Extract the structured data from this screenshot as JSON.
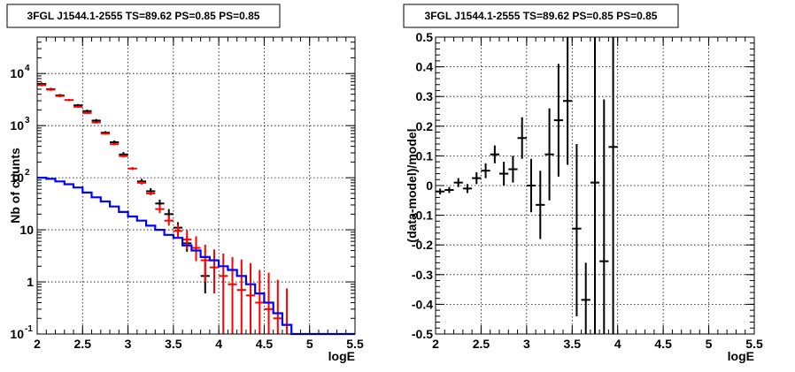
{
  "chart_data": [
    {
      "type": "line",
      "title": "3FGL J1544.1-2555 TS=89.62 PS=0.85 PS=0.85",
      "xlabel": "logE",
      "ylabel": "Nb of counts",
      "xlim": [
        2,
        5.5
      ],
      "ylim": [
        0.1,
        50000
      ],
      "yscale": "log",
      "grid": true,
      "x_ticks": [
        "2",
        "2.5",
        "3",
        "3.5",
        "4",
        "4.5",
        "5",
        "5.5"
      ],
      "y_ticks": [
        {
          "value": 0.1,
          "mant": "10",
          "exp": "-1"
        },
        {
          "value": 1,
          "mant": "1",
          "exp": ""
        },
        {
          "value": 10,
          "mant": "10",
          "exp": ""
        },
        {
          "value": 100,
          "mant": "10",
          "exp": "2"
        },
        {
          "value": 1000,
          "mant": "10",
          "exp": "3"
        },
        {
          "value": 10000,
          "mant": "10",
          "exp": "4"
        }
      ],
      "colors": {
        "data": "#000000",
        "model": "#ff0000",
        "background": "#0000ff"
      },
      "series": [
        {
          "kind": "errorbars",
          "color": "#000000",
          "points": [
            {
              "x": 2.05,
              "y": 6300,
              "lo": 5900,
              "hi": 6700
            },
            {
              "x": 2.15,
              "y": 5000,
              "lo": 4700,
              "hi": 5300
            },
            {
              "x": 2.25,
              "y": 3800,
              "lo": 3550,
              "hi": 4050
            },
            {
              "x": 2.45,
              "y": 2450,
              "lo": 2300,
              "hi": 2600
            },
            {
              "x": 2.55,
              "y": 1900,
              "lo": 1780,
              "hi": 2020
            },
            {
              "x": 2.65,
              "y": 1250,
              "lo": 1160,
              "hi": 1340
            },
            {
              "x": 2.75,
              "y": 730,
              "lo": 680,
              "hi": 780
            },
            {
              "x": 2.85,
              "y": 480,
              "lo": 440,
              "hi": 520
            },
            {
              "x": 2.95,
              "y": 280,
              "lo": 250,
              "hi": 310
            },
            {
              "x": 3.15,
              "y": 85,
              "lo": 76,
              "hi": 95
            },
            {
              "x": 3.25,
              "y": 55,
              "lo": 48,
              "hi": 63
            },
            {
              "x": 3.35,
              "y": 32,
              "lo": 27,
              "hi": 38
            },
            {
              "x": 3.45,
              "y": 20,
              "lo": 16,
              "hi": 25
            },
            {
              "x": 3.55,
              "y": 11,
              "lo": 8.5,
              "hi": 14
            },
            {
              "x": 3.65,
              "y": 5.5,
              "lo": 3.8,
              "hi": 7.5
            },
            {
              "x": 3.75,
              "y": 4,
              "lo": 2.8,
              "hi": 5.8
            },
            {
              "x": 3.85,
              "y": 1.3,
              "lo": 0.6,
              "hi": 2.4
            }
          ]
        },
        {
          "kind": "errorbars",
          "color": "#ff0000",
          "points": [
            {
              "x": 2.05,
              "y": 6000,
              "lo": 5700,
              "hi": 6300
            },
            {
              "x": 2.15,
              "y": 4900,
              "lo": 4650,
              "hi": 5150
            },
            {
              "x": 2.25,
              "y": 3700,
              "lo": 3500,
              "hi": 3900
            },
            {
              "x": 2.35,
              "y": 3100,
              "lo": 2950,
              "hi": 3250
            },
            {
              "x": 2.45,
              "y": 2300,
              "lo": 2200,
              "hi": 2400
            },
            {
              "x": 2.55,
              "y": 1750,
              "lo": 1680,
              "hi": 1820
            },
            {
              "x": 2.65,
              "y": 1150,
              "lo": 1100,
              "hi": 1200
            },
            {
              "x": 2.75,
              "y": 700,
              "lo": 670,
              "hi": 730
            },
            {
              "x": 2.85,
              "y": 440,
              "lo": 420,
              "hi": 460
            },
            {
              "x": 2.95,
              "y": 260,
              "lo": 245,
              "hi": 275
            },
            {
              "x": 3.05,
              "y": 150,
              "lo": 140,
              "hi": 160
            },
            {
              "x": 3.15,
              "y": 80,
              "lo": 74,
              "hi": 86
            },
            {
              "x": 3.25,
              "y": 50,
              "lo": 46,
              "hi": 54
            },
            {
              "x": 3.35,
              "y": 25,
              "lo": 21,
              "hi": 30
            },
            {
              "x": 3.45,
              "y": 15,
              "lo": 12,
              "hi": 19
            },
            {
              "x": 3.55,
              "y": 9.5,
              "lo": 7,
              "hi": 13
            },
            {
              "x": 3.65,
              "y": 6.5,
              "lo": 4.2,
              "hi": 9.8
            },
            {
              "x": 3.75,
              "y": 4.5,
              "lo": 2.5,
              "hi": 7.5
            },
            {
              "x": 3.85,
              "y": 2.6,
              "lo": 1.0,
              "hi": 5.2
            },
            {
              "x": 3.95,
              "y": 1.9,
              "lo": 0.6,
              "hi": 4.2
            },
            {
              "x": 4.05,
              "y": 1.3,
              "lo": 0.1,
              "hi": 3.5
            },
            {
              "x": 4.15,
              "y": 0.9,
              "lo": 0.1,
              "hi": 3.0
            },
            {
              "x": 4.25,
              "y": 0.7,
              "lo": 0.1,
              "hi": 2.7
            },
            {
              "x": 4.35,
              "y": 0.55,
              "lo": 0.1,
              "hi": 2.3
            },
            {
              "x": 4.45,
              "y": 0.4,
              "lo": 0.1,
              "hi": 1.7
            },
            {
              "x": 4.55,
              "y": 0.3,
              "lo": 0.1,
              "hi": 1.5
            },
            {
              "x": 4.65,
              "y": 0.2,
              "lo": 0.1,
              "hi": 1.1
            },
            {
              "x": 4.75,
              "y": 0.15,
              "lo": 0.1,
              "hi": 0.75
            }
          ]
        },
        {
          "kind": "step",
          "color": "#0000ff",
          "edges": [
            2.0,
            2.1,
            2.2,
            2.3,
            2.4,
            2.5,
            2.6,
            2.7,
            2.8,
            2.9,
            3.0,
            3.1,
            3.2,
            3.3,
            3.4,
            3.5,
            3.6,
            3.7,
            3.8,
            3.9,
            4.0,
            4.1,
            4.2,
            4.3,
            4.4,
            4.5,
            4.6,
            4.7,
            4.8,
            4.9,
            5.5
          ],
          "values": [
            100,
            95,
            85,
            75,
            65,
            52,
            42,
            35,
            28,
            22,
            18,
            15,
            12,
            10,
            8,
            7,
            5,
            4,
            3,
            2.6,
            2,
            1.7,
            1.3,
            0.9,
            0.6,
            0.4,
            0.25,
            0.15,
            0.1,
            0.1
          ]
        }
      ]
    },
    {
      "type": "scatter",
      "title": "3FGL J1544.1-2555 TS=89.62 PS=0.85 PS=0.85",
      "xlabel": "logE",
      "ylabel": "(data-model)/model",
      "xlim": [
        2,
        5.5
      ],
      "ylim": [
        -0.5,
        0.5
      ],
      "grid": true,
      "x_ticks": [
        "2",
        "2.5",
        "3",
        "3.5",
        "4",
        "4.5",
        "5",
        "5.5"
      ],
      "y_ticks": [
        "-0.5",
        "-0.4",
        "-0.3",
        "-0.2",
        "-0.1",
        "0",
        "0.1",
        "0.2",
        "0.3",
        "0.4",
        "0.5"
      ],
      "series": [
        {
          "kind": "errorbars",
          "color": "#000000",
          "points": [
            {
              "x": 2.05,
              "y": -0.02,
              "lo": -0.03,
              "hi": -0.01
            },
            {
              "x": 2.15,
              "y": -0.015,
              "lo": -0.025,
              "hi": -0.005
            },
            {
              "x": 2.25,
              "y": 0.01,
              "lo": -0.005,
              "hi": 0.025
            },
            {
              "x": 2.35,
              "y": -0.01,
              "lo": -0.025,
              "hi": 0.005
            },
            {
              "x": 2.45,
              "y": 0.025,
              "lo": 0.005,
              "hi": 0.045
            },
            {
              "x": 2.55,
              "y": 0.05,
              "lo": 0.025,
              "hi": 0.075
            },
            {
              "x": 2.65,
              "y": 0.105,
              "lo": 0.075,
              "hi": 0.135
            },
            {
              "x": 2.75,
              "y": 0.04,
              "lo": 0.0,
              "hi": 0.08
            },
            {
              "x": 2.85,
              "y": 0.055,
              "lo": 0.01,
              "hi": 0.1
            },
            {
              "x": 2.95,
              "y": 0.16,
              "lo": 0.09,
              "hi": 0.23
            },
            {
              "x": 3.05,
              "y": 0.0,
              "lo": -0.09,
              "hi": 0.09
            },
            {
              "x": 3.15,
              "y": -0.065,
              "lo": -0.18,
              "hi": 0.05
            },
            {
              "x": 3.25,
              "y": 0.105,
              "lo": -0.05,
              "hi": 0.26
            },
            {
              "x": 3.35,
              "y": 0.22,
              "lo": 0.03,
              "hi": 0.41
            },
            {
              "x": 3.45,
              "y": 0.285,
              "lo": 0.07,
              "hi": 0.5
            },
            {
              "x": 3.55,
              "y": -0.145,
              "lo": -0.44,
              "hi": 0.14
            },
            {
              "x": 3.65,
              "y": -0.385,
              "lo": -0.5,
              "hi": -0.26
            },
            {
              "x": 3.75,
              "y": 0.01,
              "lo": -0.5,
              "hi": 0.5
            },
            {
              "x": 3.85,
              "y": -0.255,
              "lo": -0.5,
              "hi": 0.29
            },
            {
              "x": 3.95,
              "y": 0.13,
              "lo": -0.5,
              "hi": 0.5
            }
          ]
        }
      ]
    }
  ]
}
